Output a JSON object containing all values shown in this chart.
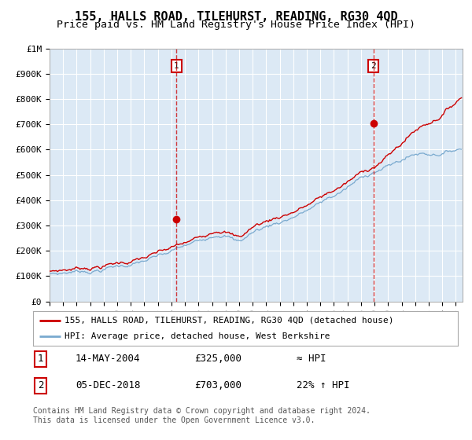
{
  "title": "155, HALLS ROAD, TILEHURST, READING, RG30 4QD",
  "subtitle": "Price paid vs. HM Land Registry's House Price Index (HPI)",
  "background_color": "#dce9f5",
  "grid_color": "#ffffff",
  "hpi_line_color": "#7aaacf",
  "price_line_color": "#cc0000",
  "marker_color": "#cc0000",
  "vline_color": "#cc0000",
  "ylim": [
    0,
    1000000
  ],
  "yticks": [
    0,
    100000,
    200000,
    300000,
    400000,
    500000,
    600000,
    700000,
    800000,
    900000,
    1000000
  ],
  "ytick_labels": [
    "£0",
    "£100K",
    "£200K",
    "£300K",
    "£400K",
    "£500K",
    "£600K",
    "£700K",
    "£800K",
    "£900K",
    "£1M"
  ],
  "sale1_year": 2004.37,
  "sale1_price": 325000,
  "sale2_year": 2018.92,
  "sale2_price": 703000,
  "legend_line1": "155, HALLS ROAD, TILEHURST, READING, RG30 4QD (detached house)",
  "legend_line2": "HPI: Average price, detached house, West Berkshire",
  "table_row1": [
    "1",
    "14-MAY-2004",
    "£325,000",
    "≈ HPI"
  ],
  "table_row2": [
    "2",
    "05-DEC-2018",
    "£703,000",
    "22% ↑ HPI"
  ],
  "footer": "Contains HM Land Registry data © Crown copyright and database right 2024.\nThis data is licensed under the Open Government Licence v3.0."
}
